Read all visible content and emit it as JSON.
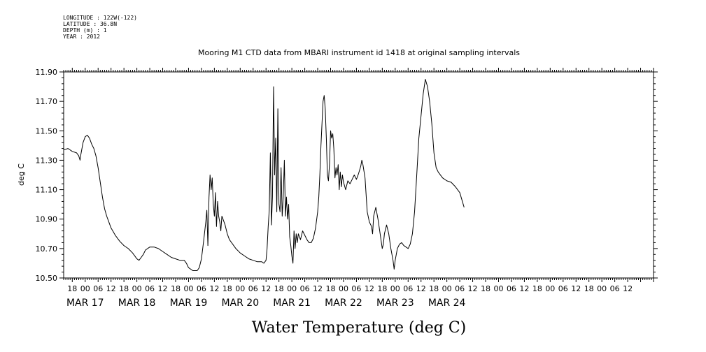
{
  "header": {
    "longitude": "LONGITUDE : 122W(-122)",
    "latitude": "LATITUDE : 36.8N",
    "depth": "DEPTH (m) : 1",
    "year": "YEAR : 2012"
  },
  "chart_data": {
    "type": "line",
    "title": "Mooring M1 CTD data from MBARI instrument id 1418 at original sampling intervals",
    "xlabel": "Water Temperature (deg C)",
    "ylabel": "deg C",
    "x_units": "hours since MAR 17 00:00 (2012)",
    "xlim": [
      -10,
      264
    ],
    "ylim": [
      10.5,
      11.9
    ],
    "grid": false,
    "y_ticks": [
      "10.50",
      "10.70",
      "10.90",
      "11.10",
      "11.30",
      "11.50",
      "11.70",
      "11.90"
    ],
    "hour_labels": [
      {
        "t": -6,
        "label": "18"
      },
      {
        "t": 0,
        "label": "00"
      },
      {
        "t": 6,
        "label": "06"
      },
      {
        "t": 12,
        "label": "12"
      },
      {
        "t": 18,
        "label": "18"
      },
      {
        "t": 24,
        "label": "00"
      },
      {
        "t": 30,
        "label": "06"
      },
      {
        "t": 36,
        "label": "12"
      },
      {
        "t": 42,
        "label": "18"
      },
      {
        "t": 48,
        "label": "00"
      },
      {
        "t": 54,
        "label": "06"
      },
      {
        "t": 60,
        "label": "12"
      },
      {
        "t": 66,
        "label": "18"
      },
      {
        "t": 72,
        "label": "00"
      },
      {
        "t": 78,
        "label": "06"
      },
      {
        "t": 84,
        "label": "12"
      },
      {
        "t": 90,
        "label": "18"
      },
      {
        "t": 96,
        "label": "00"
      },
      {
        "t": 102,
        "label": "06"
      },
      {
        "t": 108,
        "label": "12"
      },
      {
        "t": 114,
        "label": "18"
      },
      {
        "t": 120,
        "label": "00"
      },
      {
        "t": 126,
        "label": "06"
      },
      {
        "t": 132,
        "label": "12"
      },
      {
        "t": 138,
        "label": "18"
      },
      {
        "t": 144,
        "label": "00"
      },
      {
        "t": 150,
        "label": "06"
      },
      {
        "t": 156,
        "label": "12"
      },
      {
        "t": 162,
        "label": "18"
      },
      {
        "t": 168,
        "label": "00"
      },
      {
        "t": 174,
        "label": "06"
      },
      {
        "t": 180,
        "label": "12"
      },
      {
        "t": 186,
        "label": "18"
      },
      {
        "t": 192,
        "label": "00"
      },
      {
        "t": 198,
        "label": "06"
      },
      {
        "t": 204,
        "label": "12"
      },
      {
        "t": 210,
        "label": "18"
      },
      {
        "t": 216,
        "label": "00"
      },
      {
        "t": 222,
        "label": "06"
      },
      {
        "t": 228,
        "label": "12"
      },
      {
        "t": 234,
        "label": "18"
      },
      {
        "t": 240,
        "label": "00"
      },
      {
        "t": 246,
        "label": "06"
      },
      {
        "t": 252,
        "label": "12"
      }
    ],
    "date_labels": [
      {
        "t": 0,
        "label": "MAR 17"
      },
      {
        "t": 24,
        "label": "MAR 18"
      },
      {
        "t": 48,
        "label": "MAR 19"
      },
      {
        "t": 72,
        "label": "MAR 20"
      },
      {
        "t": 96,
        "label": "MAR 21"
      },
      {
        "t": 120,
        "label": "MAR 22"
      },
      {
        "t": 144,
        "label": "MAR 23"
      },
      {
        "t": 168,
        "label": "MAR 24"
      }
    ],
    "series": [
      {
        "color": "#000000",
        "points": [
          [
            -10,
            11.37
          ],
          [
            -8,
            11.38
          ],
          [
            -6,
            11.36
          ],
          [
            -4,
            11.35
          ],
          [
            -3,
            11.33
          ],
          [
            -2.4,
            11.3
          ],
          [
            -2,
            11.34
          ],
          [
            -1,
            11.42
          ],
          [
            0,
            11.46
          ],
          [
            1,
            11.47
          ],
          [
            2,
            11.45
          ],
          [
            3,
            11.41
          ],
          [
            4,
            11.38
          ],
          [
            5,
            11.33
          ],
          [
            6,
            11.25
          ],
          [
            7,
            11.15
          ],
          [
            8,
            11.05
          ],
          [
            9,
            10.97
          ],
          [
            10,
            10.92
          ],
          [
            11,
            10.88
          ],
          [
            12,
            10.84
          ],
          [
            14,
            10.79
          ],
          [
            16,
            10.75
          ],
          [
            18,
            10.72
          ],
          [
            20,
            10.7
          ],
          [
            22,
            10.67
          ],
          [
            24,
            10.63
          ],
          [
            25,
            10.62
          ],
          [
            26,
            10.64
          ],
          [
            27,
            10.66
          ],
          [
            28,
            10.69
          ],
          [
            30,
            10.71
          ],
          [
            32,
            10.71
          ],
          [
            34,
            10.7
          ],
          [
            36,
            10.68
          ],
          [
            38,
            10.66
          ],
          [
            40,
            10.64
          ],
          [
            42,
            10.63
          ],
          [
            44,
            10.62
          ],
          [
            46,
            10.62
          ],
          [
            47,
            10.6
          ],
          [
            48,
            10.57
          ],
          [
            50,
            10.55
          ],
          [
            52,
            10.55
          ],
          [
            53,
            10.57
          ],
          [
            54,
            10.63
          ],
          [
            55,
            10.75
          ],
          [
            56,
            10.88
          ],
          [
            56.5,
            10.96
          ],
          [
            57,
            10.72
          ],
          [
            57.5,
            11.05
          ],
          [
            58,
            11.2
          ],
          [
            58.5,
            11.1
          ],
          [
            59,
            11.18
          ],
          [
            59.5,
            11.0
          ],
          [
            60,
            10.92
          ],
          [
            60.5,
            11.08
          ],
          [
            61,
            10.85
          ],
          [
            61.5,
            11.02
          ],
          [
            62,
            10.92
          ],
          [
            62.5,
            10.88
          ],
          [
            63,
            10.82
          ],
          [
            63.5,
            10.92
          ],
          [
            64,
            10.9
          ],
          [
            65,
            10.86
          ],
          [
            66,
            10.8
          ],
          [
            67,
            10.76
          ],
          [
            68,
            10.74
          ],
          [
            70,
            10.7
          ],
          [
            72,
            10.67
          ],
          [
            74,
            10.65
          ],
          [
            76,
            10.63
          ],
          [
            78,
            10.62
          ],
          [
            80,
            10.61
          ],
          [
            82,
            10.61
          ],
          [
            83,
            10.6
          ],
          [
            84,
            10.62
          ],
          [
            84.5,
            10.7
          ],
          [
            85,
            10.85
          ],
          [
            85.5,
            10.96
          ],
          [
            86,
            11.35
          ],
          [
            86.5,
            10.86
          ],
          [
            87,
            11.05
          ],
          [
            87.5,
            11.8
          ],
          [
            88,
            11.2
          ],
          [
            88.5,
            11.45
          ],
          [
            89,
            10.95
          ],
          [
            89.5,
            11.65
          ],
          [
            90,
            11.0
          ],
          [
            90.5,
            10.95
          ],
          [
            91,
            11.25
          ],
          [
            91.5,
            10.92
          ],
          [
            92,
            11.05
          ],
          [
            92.5,
            11.3
          ],
          [
            93,
            10.92
          ],
          [
            93.5,
            11.05
          ],
          [
            94,
            10.9
          ],
          [
            94.5,
            11.0
          ],
          [
            95,
            10.78
          ],
          [
            95.5,
            10.72
          ],
          [
            96,
            10.65
          ],
          [
            96.5,
            10.6
          ],
          [
            97,
            10.82
          ],
          [
            97.5,
            10.7
          ],
          [
            98,
            10.8
          ],
          [
            98.5,
            10.74
          ],
          [
            99,
            10.8
          ],
          [
            100,
            10.76
          ],
          [
            101,
            10.82
          ],
          [
            102,
            10.79
          ],
          [
            103,
            10.76
          ],
          [
            104,
            10.74
          ],
          [
            105,
            10.74
          ],
          [
            106,
            10.77
          ],
          [
            107,
            10.84
          ],
          [
            108,
            10.95
          ],
          [
            108.5,
            11.05
          ],
          [
            109,
            11.2
          ],
          [
            109.5,
            11.4
          ],
          [
            110,
            11.55
          ],
          [
            110.5,
            11.7
          ],
          [
            111,
            11.74
          ],
          [
            111.5,
            11.65
          ],
          [
            112,
            11.45
          ],
          [
            112.5,
            11.2
          ],
          [
            113,
            11.16
          ],
          [
            113.5,
            11.28
          ],
          [
            114,
            11.5
          ],
          [
            114.5,
            11.45
          ],
          [
            115,
            11.48
          ],
          [
            115.5,
            11.38
          ],
          [
            116,
            11.18
          ],
          [
            116.5,
            11.25
          ],
          [
            117,
            11.2
          ],
          [
            117.5,
            11.27
          ],
          [
            118,
            11.1
          ],
          [
            118.5,
            11.22
          ],
          [
            119,
            11.12
          ],
          [
            119.5,
            11.2
          ],
          [
            120,
            11.15
          ],
          [
            121,
            11.1
          ],
          [
            122,
            11.16
          ],
          [
            123,
            11.14
          ],
          [
            124,
            11.17
          ],
          [
            125,
            11.2
          ],
          [
            126,
            11.17
          ],
          [
            127,
            11.21
          ],
          [
            128,
            11.26
          ],
          [
            128.5,
            11.3
          ],
          [
            129,
            11.27
          ],
          [
            130,
            11.18
          ],
          [
            131,
            10.95
          ],
          [
            132,
            10.88
          ],
          [
            133,
            10.85
          ],
          [
            133.5,
            10.8
          ],
          [
            134,
            10.92
          ],
          [
            135,
            10.98
          ],
          [
            136,
            10.9
          ],
          [
            137,
            10.8
          ],
          [
            138,
            10.7
          ],
          [
            138.5,
            10.73
          ],
          [
            139,
            10.8
          ],
          [
            140,
            10.86
          ],
          [
            141,
            10.8
          ],
          [
            142,
            10.7
          ],
          [
            143,
            10.62
          ],
          [
            143.5,
            10.56
          ],
          [
            144,
            10.62
          ],
          [
            145,
            10.7
          ],
          [
            146,
            10.73
          ],
          [
            147,
            10.74
          ],
          [
            148,
            10.72
          ],
          [
            149,
            10.71
          ],
          [
            150,
            10.7
          ],
          [
            151,
            10.73
          ],
          [
            152,
            10.8
          ],
          [
            153,
            10.95
          ],
          [
            154,
            11.2
          ],
          [
            155,
            11.45
          ],
          [
            156,
            11.6
          ],
          [
            157,
            11.75
          ],
          [
            158,
            11.85
          ],
          [
            159,
            11.8
          ],
          [
            160,
            11.7
          ],
          [
            161,
            11.55
          ],
          [
            162,
            11.35
          ],
          [
            163,
            11.25
          ],
          [
            164,
            11.22
          ],
          [
            166,
            11.18
          ],
          [
            168,
            11.16
          ],
          [
            170,
            11.15
          ],
          [
            172,
            11.12
          ],
          [
            174,
            11.08
          ],
          [
            175,
            11.03
          ],
          [
            176,
            10.98
          ]
        ]
      }
    ]
  }
}
